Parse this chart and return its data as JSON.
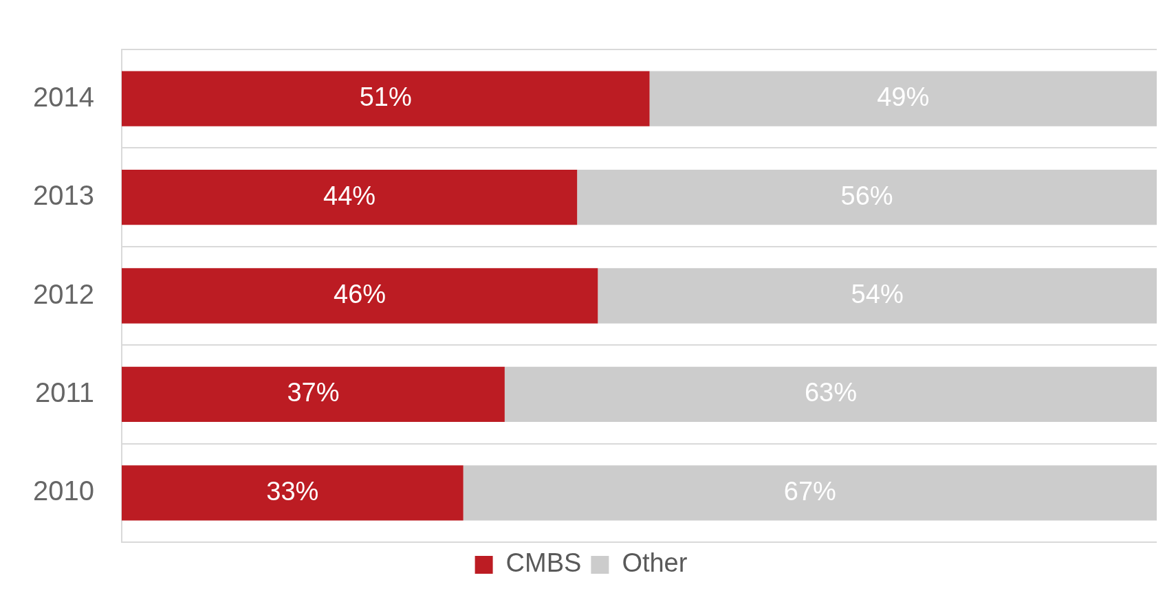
{
  "chart_data": {
    "type": "bar",
    "orientation": "horizontal",
    "stacked": true,
    "categories": [
      "2014",
      "2013",
      "2012",
      "2011",
      "2010"
    ],
    "series": [
      {
        "name": "CMBS",
        "color": "#bc1c23",
        "values": [
          51,
          44,
          46,
          37,
          33
        ],
        "value_labels": [
          "51%",
          "44%",
          "46%",
          "37%",
          "33%"
        ]
      },
      {
        "name": "Other",
        "color": "#cccccc",
        "values": [
          49,
          56,
          54,
          63,
          67
        ],
        "value_labels": [
          "49%",
          "56%",
          "54%",
          "63%",
          "67%"
        ]
      }
    ],
    "xlim": [
      0,
      100
    ],
    "tick_labels": "y",
    "grid": "y",
    "legend": "bottom"
  }
}
